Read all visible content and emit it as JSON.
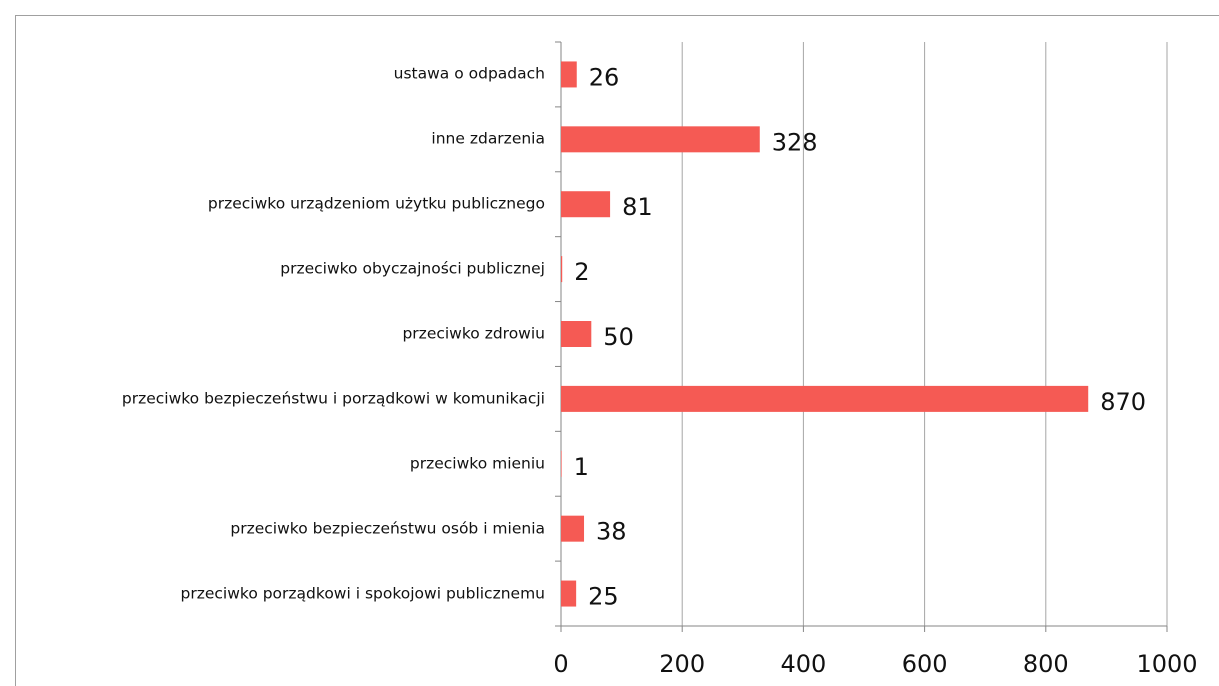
{
  "chart_data": {
    "type": "bar",
    "orientation": "horizontal",
    "categories": [
      "ustawa o odpadach",
      "inne zdarzenia",
      "przeciwko urządzeniom użytku publicznego",
      "przeciwko obyczajności publicznej",
      "przeciwko zdrowiu",
      "przeciwko bezpieczeństwu i porządkowi w komunikacji",
      "przeciwko mieniu",
      "przeciwko bezpieczeństwu osób i mienia",
      "przeciwko porządkowi i spokojowi  publicznemu"
    ],
    "values": [
      26,
      328,
      81,
      2,
      50,
      870,
      1,
      38,
      25
    ],
    "color": "#f55a54",
    "xlim": [
      0,
      1000
    ],
    "xticks": [
      0,
      200,
      400,
      600,
      800,
      1000
    ],
    "grid": true
  }
}
